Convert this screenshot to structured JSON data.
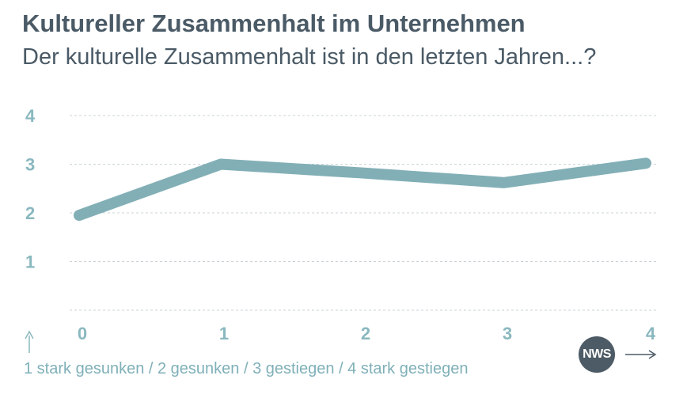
{
  "header": {
    "title": "Kultureller Zusammenhalt im Unternehmen",
    "subtitle": "Der kulturelle Zusammenhalt ist in den letzten Jahren...?"
  },
  "legend_text": "1 stark gesunken / 2 gesunken / 3 gestiegen / 4 stark gestiegen",
  "logo": {
    "text": "NWS"
  },
  "colors": {
    "line": "#82afb6",
    "tick_text": "#8ab8bf",
    "grid": "#c9d3d7",
    "title": "#4a5a66"
  },
  "chart_data": {
    "type": "line",
    "x": [
      0,
      1,
      2,
      3,
      4
    ],
    "series": [
      {
        "values": [
          1.95,
          3.0,
          2.82,
          2.62,
          3.02
        ]
      }
    ],
    "xlim": [
      0,
      4
    ],
    "ylim": [
      0,
      4
    ],
    "x_ticks": [
      "0",
      "1",
      "2",
      "3",
      "4"
    ],
    "y_ticks": [
      "1",
      "2",
      "3",
      "4"
    ],
    "grid": true,
    "x_axis_arrow": true,
    "y_axis_arrow": true
  }
}
